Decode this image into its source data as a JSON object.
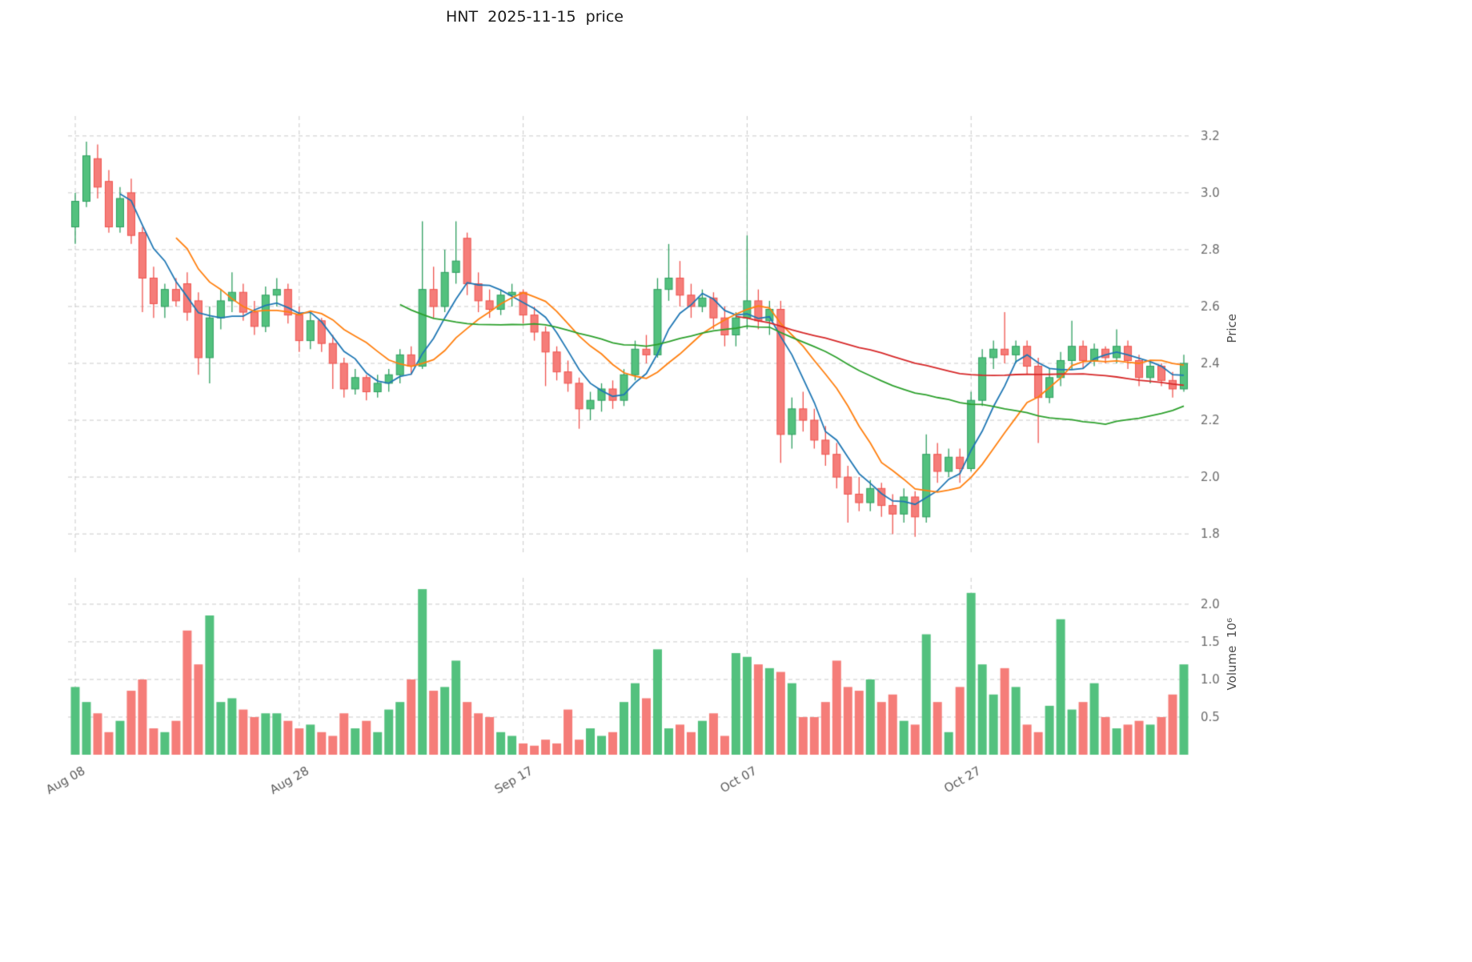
{
  "title": "HNT  2025-11-15  price",
  "colors": {
    "up_fill": "#53c17e",
    "up_edge": "#2e9e5f",
    "down_fill": "#f57d79",
    "down_edge": "#ef534e",
    "grid": "#c9c9c9",
    "tick_text": "#6b6b6b",
    "date_text": "#595959"
  },
  "chart_data": {
    "type": "candlestick",
    "title": "HNT  2025-11-15  price",
    "ylabel": "Price",
    "volume_ylabel": "Volume  10⁶",
    "grid": true,
    "legend": false,
    "price_ticks": [
      1.8,
      2.0,
      2.2,
      2.4,
      2.6,
      2.8,
      3.0,
      3.2
    ],
    "volume_ticks": [
      0.5,
      1.0,
      1.5,
      2.0
    ],
    "price_ylim": [
      1.73,
      3.27
    ],
    "volume_ylim": [
      0,
      2.35
    ],
    "x_ticks": [
      {
        "index": 0,
        "label": "Aug 08"
      },
      {
        "index": 20,
        "label": "Aug 28"
      },
      {
        "index": 40,
        "label": "Sep 17"
      },
      {
        "index": 60,
        "label": "Oct 07"
      },
      {
        "index": 80,
        "label": "Oct 27"
      }
    ],
    "moving_averages": [
      {
        "name": "MA5",
        "window": 5,
        "color": "#1f77b4"
      },
      {
        "name": "MA10",
        "window": 10,
        "color": "#ff7f0e"
      },
      {
        "name": "MA30",
        "window": 30,
        "color": "#2ca02c"
      },
      {
        "name": "MA60",
        "window": 60,
        "color": "#d62728"
      }
    ],
    "columns": [
      "open",
      "high",
      "low",
      "close",
      "volume_millions"
    ],
    "candles": [
      [
        2.88,
        3.0,
        2.82,
        2.97,
        0.9
      ],
      [
        2.97,
        3.18,
        2.95,
        3.13,
        0.7
      ],
      [
        3.12,
        3.17,
        2.98,
        3.02,
        0.55
      ],
      [
        3.04,
        3.08,
        2.86,
        2.88,
        0.3
      ],
      [
        2.88,
        3.02,
        2.86,
        2.98,
        0.45
      ],
      [
        3.0,
        3.05,
        2.82,
        2.85,
        0.85
      ],
      [
        2.86,
        2.88,
        2.58,
        2.7,
        1.0
      ],
      [
        2.7,
        2.74,
        2.56,
        2.61,
        0.35
      ],
      [
        2.6,
        2.68,
        2.56,
        2.66,
        0.3
      ],
      [
        2.66,
        2.7,
        2.6,
        2.62,
        0.45
      ],
      [
        2.68,
        2.72,
        2.55,
        2.58,
        1.65
      ],
      [
        2.62,
        2.65,
        2.36,
        2.42,
        1.2
      ],
      [
        2.42,
        2.6,
        2.33,
        2.56,
        1.85
      ],
      [
        2.56,
        2.66,
        2.52,
        2.62,
        0.7
      ],
      [
        2.62,
        2.72,
        2.58,
        2.65,
        0.75
      ],
      [
        2.65,
        2.68,
        2.55,
        2.58,
        0.6
      ],
      [
        2.58,
        2.62,
        2.5,
        2.53,
        0.5
      ],
      [
        2.53,
        2.67,
        2.51,
        2.64,
        0.55
      ],
      [
        2.64,
        2.7,
        2.6,
        2.66,
        0.55
      ],
      [
        2.66,
        2.68,
        2.54,
        2.57,
        0.45
      ],
      [
        2.57,
        2.6,
        2.44,
        2.48,
        0.35
      ],
      [
        2.48,
        2.58,
        2.45,
        2.55,
        0.4
      ],
      [
        2.55,
        2.56,
        2.44,
        2.47,
        0.3
      ],
      [
        2.47,
        2.5,
        2.31,
        2.4,
        0.25
      ],
      [
        2.4,
        2.42,
        2.28,
        2.31,
        0.55
      ],
      [
        2.31,
        2.38,
        2.29,
        2.35,
        0.35
      ],
      [
        2.35,
        2.36,
        2.27,
        2.3,
        0.45
      ],
      [
        2.3,
        2.36,
        2.28,
        2.33,
        0.3
      ],
      [
        2.33,
        2.38,
        2.3,
        2.36,
        0.6
      ],
      [
        2.36,
        2.45,
        2.33,
        2.43,
        0.7
      ],
      [
        2.43,
        2.46,
        2.36,
        2.39,
        1.0
      ],
      [
        2.39,
        2.9,
        2.38,
        2.66,
        2.2
      ],
      [
        2.66,
        2.74,
        2.56,
        2.6,
        0.85
      ],
      [
        2.6,
        2.8,
        2.58,
        2.72,
        0.9
      ],
      [
        2.72,
        2.9,
        2.68,
        2.76,
        1.25
      ],
      [
        2.84,
        2.86,
        2.64,
        2.68,
        0.7
      ],
      [
        2.68,
        2.72,
        2.58,
        2.62,
        0.55
      ],
      [
        2.62,
        2.66,
        2.56,
        2.59,
        0.5
      ],
      [
        2.59,
        2.66,
        2.57,
        2.64,
        0.3
      ],
      [
        2.64,
        2.68,
        2.6,
        2.65,
        0.25
      ],
      [
        2.65,
        2.66,
        2.54,
        2.57,
        0.15
      ],
      [
        2.57,
        2.6,
        2.48,
        2.51,
        0.12
      ],
      [
        2.51,
        2.53,
        2.32,
        2.44,
        0.2
      ],
      [
        2.44,
        2.46,
        2.34,
        2.37,
        0.15
      ],
      [
        2.37,
        2.41,
        2.3,
        2.33,
        0.6
      ],
      [
        2.33,
        2.35,
        2.17,
        2.24,
        0.2
      ],
      [
        2.24,
        2.3,
        2.2,
        2.27,
        0.35
      ],
      [
        2.27,
        2.33,
        2.23,
        2.31,
        0.25
      ],
      [
        2.31,
        2.34,
        2.24,
        2.27,
        0.3
      ],
      [
        2.27,
        2.38,
        2.25,
        2.36,
        0.7
      ],
      [
        2.36,
        2.48,
        2.34,
        2.45,
        0.95
      ],
      [
        2.45,
        2.5,
        2.4,
        2.43,
        0.75
      ],
      [
        2.43,
        2.7,
        2.42,
        2.66,
        1.4
      ],
      [
        2.66,
        2.82,
        2.62,
        2.7,
        0.35
      ],
      [
        2.7,
        2.76,
        2.6,
        2.64,
        0.4
      ],
      [
        2.64,
        2.68,
        2.56,
        2.6,
        0.3
      ],
      [
        2.6,
        2.66,
        2.58,
        2.63,
        0.45
      ],
      [
        2.63,
        2.65,
        2.52,
        2.56,
        0.55
      ],
      [
        2.56,
        2.6,
        2.46,
        2.5,
        0.25
      ],
      [
        2.5,
        2.58,
        2.46,
        2.56,
        1.35
      ],
      [
        2.56,
        2.85,
        2.52,
        2.62,
        1.3
      ],
      [
        2.62,
        2.66,
        2.52,
        2.55,
        1.2
      ],
      [
        2.55,
        2.62,
        2.5,
        2.59,
        1.15
      ],
      [
        2.59,
        2.62,
        2.05,
        2.15,
        1.1
      ],
      [
        2.15,
        2.28,
        2.1,
        2.24,
        0.95
      ],
      [
        2.24,
        2.3,
        2.16,
        2.2,
        0.5
      ],
      [
        2.2,
        2.24,
        2.1,
        2.13,
        0.5
      ],
      [
        2.13,
        2.18,
        2.04,
        2.08,
        0.7
      ],
      [
        2.08,
        2.12,
        1.96,
        2.0,
        1.25
      ],
      [
        2.0,
        2.04,
        1.84,
        1.94,
        0.9
      ],
      [
        1.94,
        2.0,
        1.88,
        1.91,
        0.85
      ],
      [
        1.91,
        1.99,
        1.88,
        1.96,
        1.0
      ],
      [
        1.96,
        1.98,
        1.86,
        1.9,
        0.7
      ],
      [
        1.9,
        1.94,
        1.8,
        1.87,
        0.8
      ],
      [
        1.87,
        1.96,
        1.84,
        1.93,
        0.45
      ],
      [
        1.93,
        1.95,
        1.79,
        1.86,
        0.4
      ],
      [
        1.86,
        2.15,
        1.84,
        2.08,
        1.6
      ],
      [
        2.08,
        2.12,
        1.98,
        2.02,
        0.7
      ],
      [
        2.02,
        2.1,
        2.0,
        2.07,
        0.3
      ],
      [
        2.07,
        2.1,
        1.98,
        2.03,
        0.9
      ],
      [
        2.03,
        2.3,
        2.02,
        2.27,
        2.15
      ],
      [
        2.27,
        2.45,
        2.25,
        2.42,
        1.2
      ],
      [
        2.42,
        2.48,
        2.38,
        2.45,
        0.8
      ],
      [
        2.45,
        2.58,
        2.4,
        2.43,
        1.15
      ],
      [
        2.43,
        2.48,
        2.4,
        2.46,
        0.9
      ],
      [
        2.46,
        2.48,
        2.36,
        2.39,
        0.4
      ],
      [
        2.39,
        2.42,
        2.12,
        2.28,
        0.3
      ],
      [
        2.28,
        2.38,
        2.26,
        2.35,
        0.65
      ],
      [
        2.35,
        2.44,
        2.32,
        2.41,
        1.8
      ],
      [
        2.41,
        2.55,
        2.38,
        2.46,
        0.6
      ],
      [
        2.46,
        2.48,
        2.38,
        2.41,
        0.7
      ],
      [
        2.41,
        2.47,
        2.39,
        2.45,
        0.95
      ],
      [
        2.45,
        2.46,
        2.4,
        2.42,
        0.5
      ],
      [
        2.42,
        2.52,
        2.4,
        2.46,
        0.35
      ],
      [
        2.46,
        2.48,
        2.38,
        2.41,
        0.4
      ],
      [
        2.41,
        2.43,
        2.32,
        2.35,
        0.45
      ],
      [
        2.35,
        2.41,
        2.33,
        2.39,
        0.4
      ],
      [
        2.39,
        2.4,
        2.32,
        2.34,
        0.5
      ],
      [
        2.34,
        2.37,
        2.28,
        2.31,
        0.8
      ],
      [
        2.31,
        2.43,
        2.3,
        2.4,
        1.2
      ]
    ]
  }
}
